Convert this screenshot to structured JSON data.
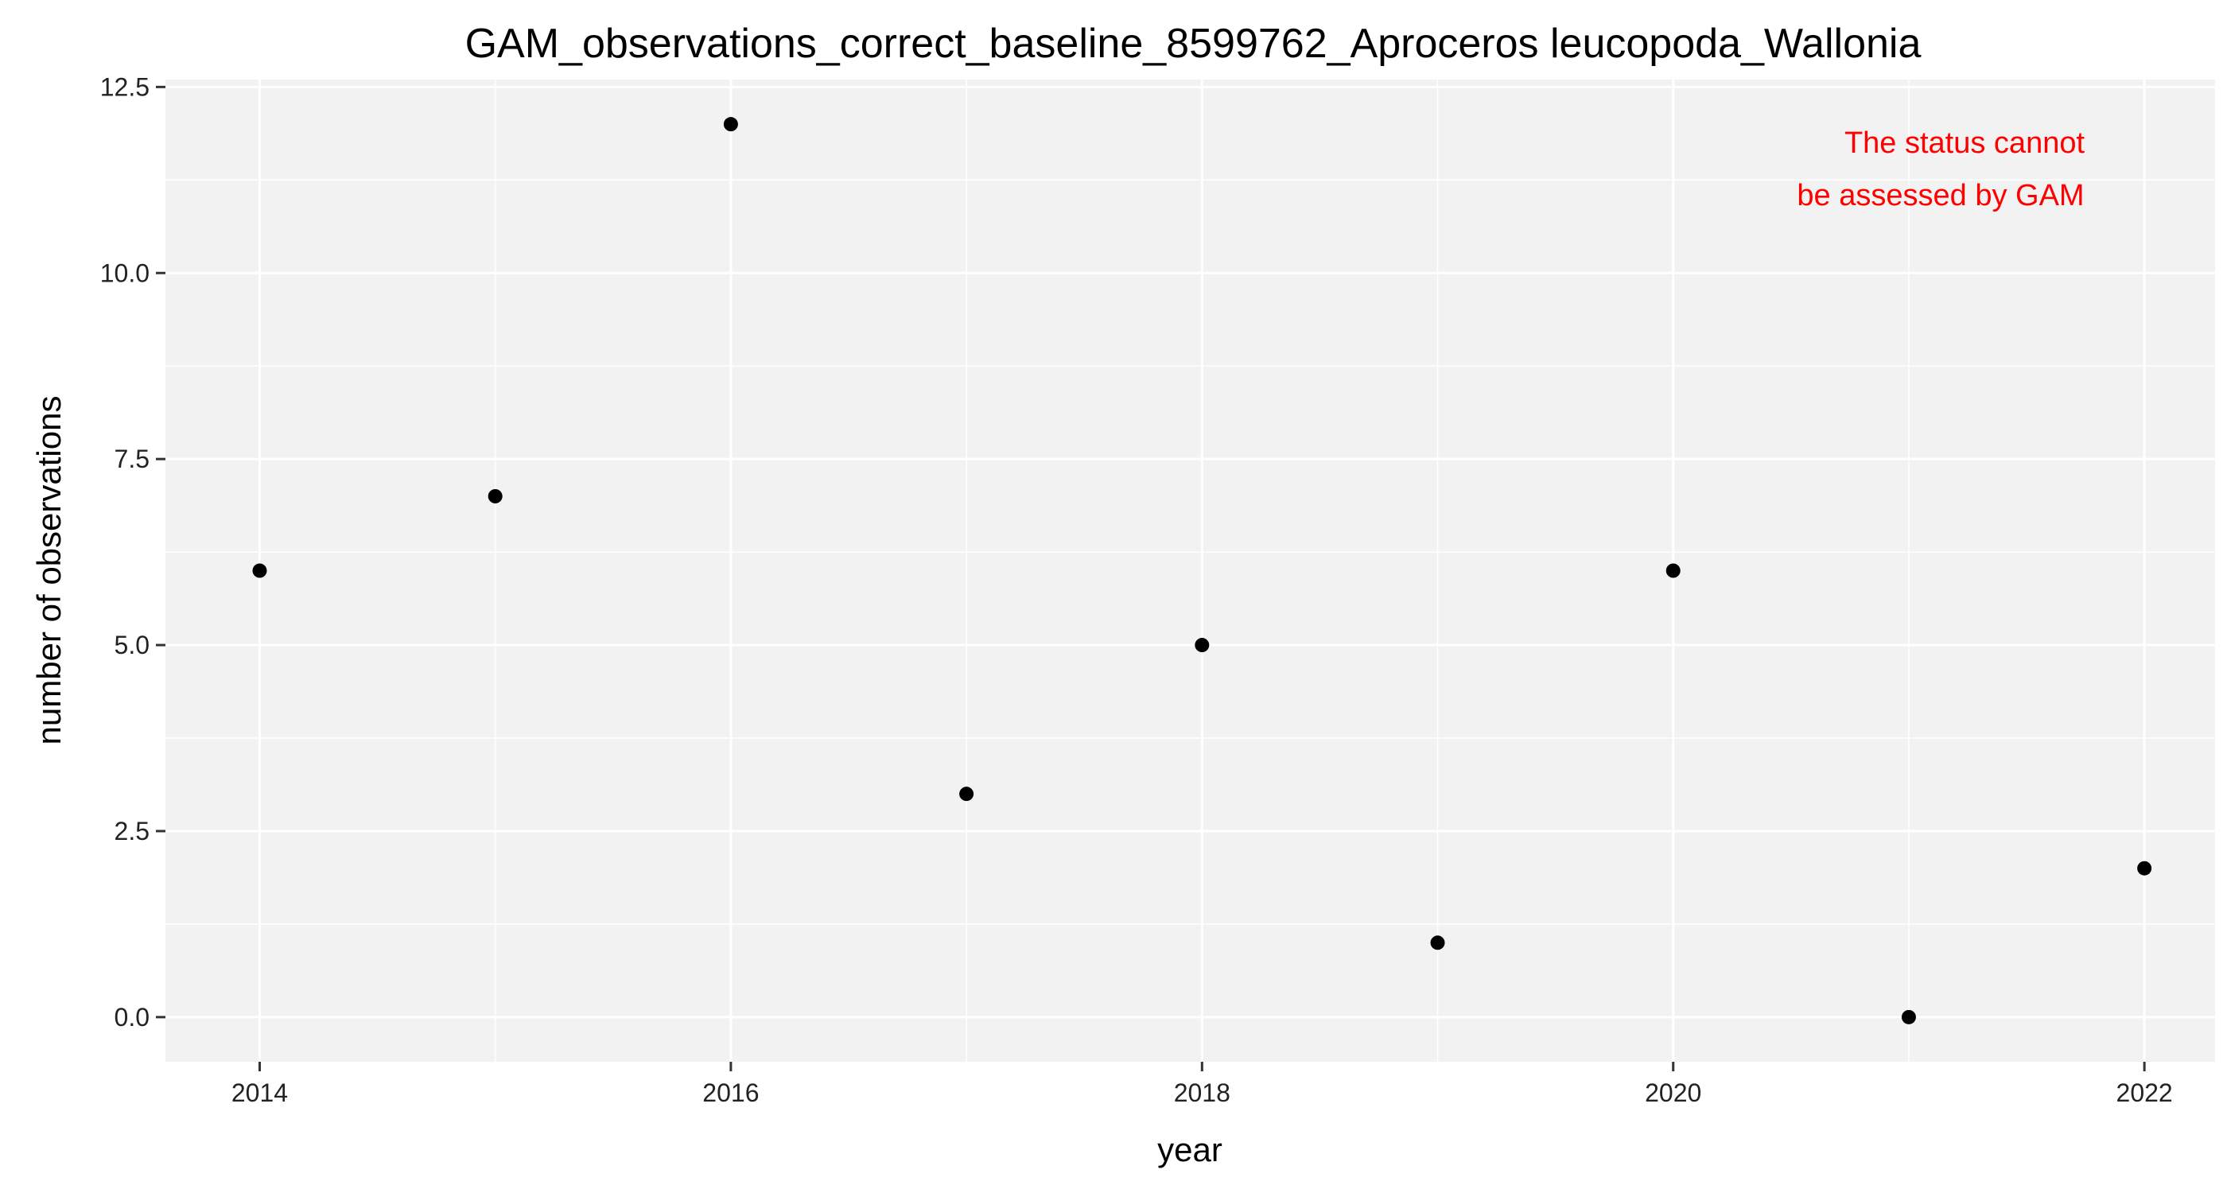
{
  "chart_data": {
    "type": "scatter",
    "title": "GAM_observations_correct_baseline_8599762_Aproceros leucopoda_Wallonia",
    "xlabel": "year",
    "ylabel": "number of observations",
    "x": [
      2014,
      2015,
      2016,
      2017,
      2018,
      2019,
      2020,
      2021,
      2022
    ],
    "y": [
      6,
      7,
      12,
      3,
      5,
      1,
      6,
      0,
      2
    ],
    "xlim": [
      2013.6,
      2022.3
    ],
    "ylim": [
      -0.6,
      12.6
    ],
    "xticks": [
      2014,
      2016,
      2018,
      2020,
      2022
    ],
    "yticks": [
      0.0,
      2.5,
      5.0,
      7.5,
      10.0,
      12.5
    ],
    "xtick_labels": [
      "2014",
      "2016",
      "2018",
      "2020",
      "2022"
    ],
    "ytick_labels": [
      "0.0",
      "2.5",
      "5.0",
      "7.5",
      "10.0",
      "12.5"
    ],
    "grid": true,
    "annotation": [
      "The status cannot",
      "be assessed by GAM"
    ],
    "annotation_color": "#ff0000",
    "panel_color": "#f2f2f2",
    "grid_color": "#ffffff",
    "point_color": "#000000"
  }
}
